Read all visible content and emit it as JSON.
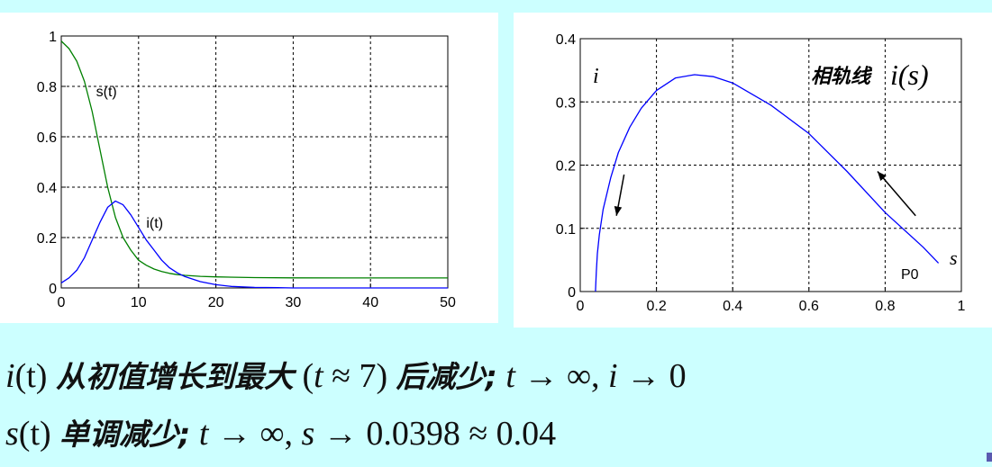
{
  "chart_data": [
    {
      "type": "line",
      "xlim": [
        0,
        50
      ],
      "ylim": [
        0,
        1
      ],
      "xticks": [
        0,
        10,
        20,
        30,
        40,
        50
      ],
      "yticks": [
        0,
        0.2,
        0.4,
        0.6,
        0.8,
        1
      ],
      "grid": true,
      "series": [
        {
          "name": "s(t)",
          "color": "#008000",
          "x": [
            0,
            1,
            2,
            3,
            4,
            5,
            6,
            7,
            8,
            9,
            10,
            11,
            12,
            13,
            14,
            15,
            16,
            18,
            20,
            25,
            30,
            40,
            50
          ],
          "y": [
            0.98,
            0.95,
            0.9,
            0.82,
            0.7,
            0.55,
            0.4,
            0.28,
            0.2,
            0.15,
            0.11,
            0.09,
            0.075,
            0.065,
            0.058,
            0.053,
            0.05,
            0.046,
            0.044,
            0.041,
            0.04,
            0.0398,
            0.0398
          ]
        },
        {
          "name": "i(t)",
          "color": "#0000ff",
          "x": [
            0,
            1,
            2,
            3,
            4,
            5,
            6,
            7,
            8,
            9,
            10,
            11,
            12,
            13,
            14,
            15,
            16,
            18,
            20,
            22,
            25,
            28,
            30,
            40,
            50
          ],
          "y": [
            0.02,
            0.04,
            0.07,
            0.12,
            0.19,
            0.26,
            0.32,
            0.345,
            0.33,
            0.29,
            0.24,
            0.19,
            0.15,
            0.11,
            0.08,
            0.06,
            0.045,
            0.025,
            0.013,
            0.006,
            0.002,
            0.001,
            0,
            0,
            0
          ]
        }
      ],
      "annotations": [
        {
          "text": "s(t)",
          "x": 4.5,
          "y": 0.76
        },
        {
          "text": "i(t)",
          "x": 11,
          "y": 0.24
        }
      ]
    },
    {
      "type": "line",
      "xlim": [
        0,
        1
      ],
      "ylim": [
        0,
        0.4
      ],
      "xticks": [
        0,
        0.2,
        0.4,
        0.6,
        0.8,
        1
      ],
      "yticks": [
        0,
        0.1,
        0.2,
        0.3,
        0.4
      ],
      "grid": true,
      "series": [
        {
          "name": "i(s)",
          "color": "#0000ff",
          "x": [
            0.04,
            0.042,
            0.045,
            0.05,
            0.06,
            0.08,
            0.1,
            0.13,
            0.16,
            0.2,
            0.25,
            0.3,
            0.35,
            0.4,
            0.5,
            0.6,
            0.7,
            0.8,
            0.9,
            0.94
          ],
          "y": [
            0,
            0.03,
            0.06,
            0.09,
            0.13,
            0.18,
            0.22,
            0.26,
            0.29,
            0.318,
            0.338,
            0.343,
            0.34,
            0.33,
            0.295,
            0.25,
            0.19,
            0.125,
            0.07,
            0.045
          ]
        }
      ],
      "arrows": [
        {
          "from": [
            0.115,
            0.185
          ],
          "to": [
            0.095,
            0.12
          ]
        },
        {
          "from": [
            0.88,
            0.12
          ],
          "to": [
            0.78,
            0.19
          ]
        }
      ],
      "labels": {
        "y_axis_letter": "i",
        "x_axis_letter": "s",
        "title_prefix": "相轨线",
        "title_formula": "i(s)",
        "point_label": "P0"
      }
    }
  ],
  "captions": {
    "line1": {
      "f1": "i",
      "f1_arg": "(t)",
      "text1": "从初值增长到最大",
      "paren_open": "(",
      "tvar": "t",
      "approx7": "≈ 7)",
      "text2": "后减少;",
      "tail_t": "t",
      "tail_arrow": "→ ∞,",
      "tail_i": "i",
      "tail_end": "→ 0"
    },
    "line2": {
      "f1": "s",
      "f1_arg": "(t)",
      "text1": "单调减少;",
      "tail_t": "t",
      "tail_arrow": "→ ∞,",
      "tail_s": "s",
      "tail_end": "→ 0.0398 ≈ 0.04"
    }
  }
}
